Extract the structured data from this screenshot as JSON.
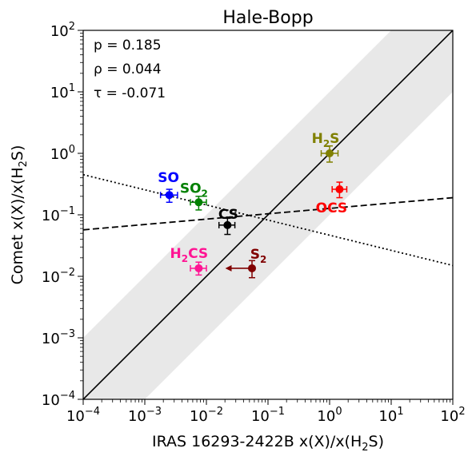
{
  "chart_data": {
    "type": "scatter",
    "title": "Hale-Bopp",
    "xlabel": "IRAS 16293-2422B x(X)/x(H2S)",
    "ylabel": "Comet x(X)/x(H2S)",
    "xscale": "log",
    "yscale": "log",
    "xlim": [
      0.0001,
      100
    ],
    "ylim": [
      0.0001,
      100
    ],
    "x_ticks": [
      {
        "base": "10",
        "exp": "−4"
      },
      {
        "base": "10",
        "exp": "−3"
      },
      {
        "base": "10",
        "exp": "−2"
      },
      {
        "base": "10",
        "exp": "−1"
      },
      {
        "base": "10",
        "exp": "0"
      },
      {
        "base": "10",
        "exp": "1"
      },
      {
        "base": "10",
        "exp": "2"
      }
    ],
    "y_ticks": [
      {
        "base": "10",
        "exp": "−4"
      },
      {
        "base": "10",
        "exp": "−3"
      },
      {
        "base": "10",
        "exp": "−2"
      },
      {
        "base": "10",
        "exp": "−1"
      },
      {
        "base": "10",
        "exp": "0"
      },
      {
        "base": "10",
        "exp": "1"
      },
      {
        "base": "10",
        "exp": "2"
      }
    ],
    "annotations": [
      "p = 0.185",
      "ρ = 0.044",
      "τ = -0.071"
    ],
    "points": [
      {
        "label": "SO",
        "sub": "",
        "x": 0.0025,
        "y": 0.21,
        "xerr": [
          0.0018,
          0.0034
        ],
        "yerr": [
          0.16,
          0.26
        ],
        "color": "#0000ff",
        "upper_limit": false
      },
      {
        "label": "SO",
        "sub": "2",
        "x": 0.0075,
        "y": 0.16,
        "xerr": [
          0.0055,
          0.01
        ],
        "yerr": [
          0.12,
          0.2
        ],
        "color": "#008000",
        "upper_limit": false
      },
      {
        "label": "CS",
        "sub": "",
        "x": 0.022,
        "y": 0.068,
        "xerr": [
          0.016,
          0.029
        ],
        "yerr": [
          0.048,
          0.088
        ],
        "color": "#000000",
        "upper_limit": false
      },
      {
        "label": "H",
        "sub": "2",
        "label_rest": "CS",
        "x": 0.0075,
        "y": 0.0135,
        "xerr": [
          0.0055,
          0.01
        ],
        "yerr": [
          0.0105,
          0.017
        ],
        "color": "#ff1493",
        "upper_limit": false
      },
      {
        "label": "S",
        "sub": "2",
        "x": 0.055,
        "y": 0.0135,
        "xerr": [
          0.055,
          0.055
        ],
        "yerr": [
          0.0095,
          0.018
        ],
        "color": "#800000",
        "upper_limit": true,
        "arrow_to": 0.0215
      },
      {
        "label": "H",
        "sub": "2",
        "label_rest": "S",
        "x": 1.0,
        "y": 1.0,
        "xerr": [
          0.73,
          1.37
        ],
        "yerr": [
          0.72,
          1.32
        ],
        "color": "#808000",
        "upper_limit": false
      },
      {
        "label": "OCS",
        "sub": "",
        "x": 1.45,
        "y": 0.26,
        "xerr": [
          1.1,
          1.9
        ],
        "yerr": [
          0.19,
          0.34
        ],
        "color": "#ff0000",
        "upper_limit": false
      }
    ],
    "lines": [
      {
        "name": "",
        "style": "solid",
        "from": [
          0.0001,
          0.0001
        ],
        "to": [
          100,
          100
        ]
      },
      {
        "name": "",
        "style": "dashed",
        "from": [
          0.0001,
          0.057
        ],
        "to": [
          100,
          0.19
        ]
      },
      {
        "name": "",
        "style": "dotted",
        "from": [
          0.0001,
          0.45
        ],
        "to": [
          100,
          0.015
        ]
      }
    ],
    "band": {
      "factor": 10,
      "color": "#e8e8e8"
    },
    "grid": false,
    "legend": "none"
  }
}
